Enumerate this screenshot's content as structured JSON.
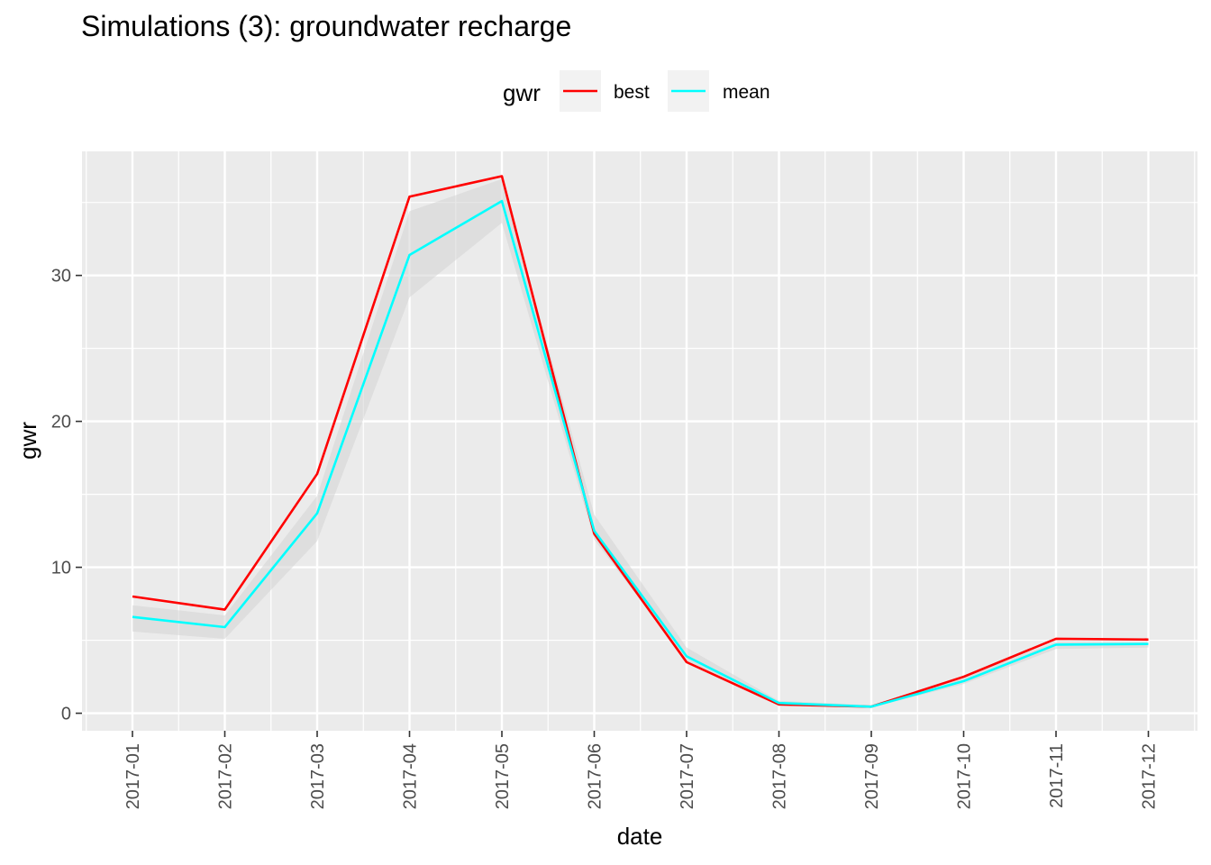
{
  "chart_data": {
    "type": "line",
    "title": "Simulations (3): groundwater recharge",
    "xlabel": "date",
    "ylabel": "gwr",
    "categories": [
      "2017-01",
      "2017-02",
      "2017-03",
      "2017-04",
      "2017-05",
      "2017-06",
      "2017-07",
      "2017-08",
      "2017-09",
      "2017-10",
      "2017-11",
      "2017-12"
    ],
    "ylim": [
      -1.2,
      38.5
    ],
    "yticks": [
      0,
      10,
      20,
      30
    ],
    "ytick_labels": [
      "0",
      "10",
      "20",
      "30"
    ],
    "series": [
      {
        "name": "best",
        "color": "#ff0000",
        "values": [
          8.0,
          7.1,
          16.4,
          35.4,
          36.8,
          12.3,
          3.5,
          0.6,
          0.45,
          2.5,
          5.1,
          5.05
        ]
      },
      {
        "name": "mean",
        "color": "#00ffff",
        "values": [
          6.6,
          5.9,
          13.7,
          31.4,
          35.1,
          12.5,
          3.9,
          0.7,
          0.45,
          2.2,
          4.7,
          4.75
        ]
      }
    ],
    "band": {
      "color": "#d3d3d3",
      "lower": [
        5.6,
        5.1,
        11.8,
        28.5,
        33.6,
        11.9,
        3.6,
        0.55,
        0.4,
        2.0,
        4.4,
        4.5
      ],
      "upper": [
        7.4,
        6.7,
        14.9,
        34.4,
        36.6,
        13.6,
        4.5,
        0.85,
        0.55,
        2.5,
        4.9,
        4.85
      ]
    },
    "legend": {
      "title": "gwr",
      "placement": "top"
    },
    "grid": true,
    "panel_background": "#ebebeb"
  }
}
